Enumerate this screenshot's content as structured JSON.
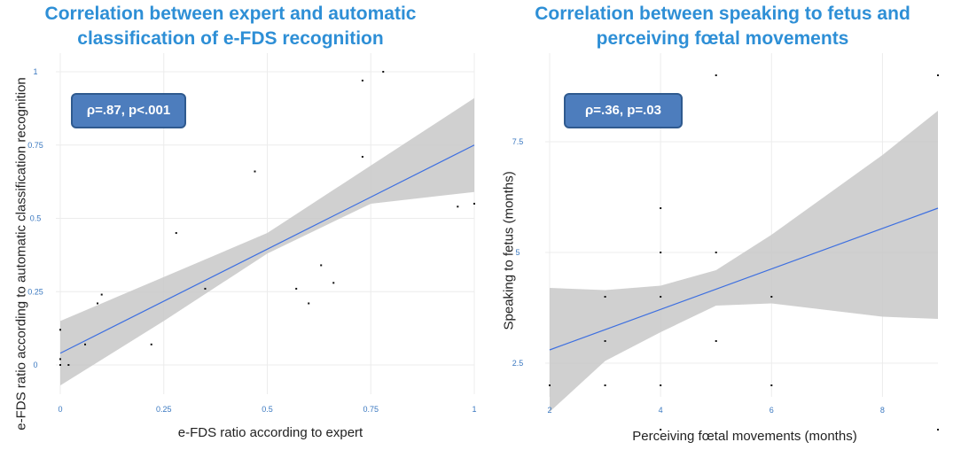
{
  "chart_data": [
    {
      "type": "scatter",
      "title": [
        "Correlation between expert and automatic",
        "classification of e-FDS recognition"
      ],
      "xlabel": "e-FDS ratio according to expert",
      "ylabel": "e-FDS ratio according to automatic classification recognition",
      "annotation": "ρ=.87, p<.001",
      "xlim": [
        0,
        1
      ],
      "ylim": [
        0,
        1
      ],
      "xticks": [
        0,
        0.25,
        0.5,
        0.75,
        1
      ],
      "xtick_labels": [
        "0",
        "0.25",
        "0.5",
        "0.75",
        "1"
      ],
      "yticks": [
        0,
        0.25,
        0.5,
        0.75,
        1
      ],
      "ytick_labels": [
        "0",
        "0.25",
        "0.5",
        "0.75",
        "1"
      ],
      "points": [
        [
          0,
          0.12
        ],
        [
          0,
          0.02
        ],
        [
          0,
          0
        ],
        [
          0.02,
          0
        ],
        [
          0.06,
          0.07
        ],
        [
          0.09,
          0.21
        ],
        [
          0.1,
          0.24
        ],
        [
          0.22,
          0.07
        ],
        [
          0.28,
          0.45
        ],
        [
          0.35,
          0.26
        ],
        [
          0.47,
          0.66
        ],
        [
          0.57,
          0.26
        ],
        [
          0.6,
          0.21
        ],
        [
          0.63,
          0.34
        ],
        [
          0.66,
          0.28
        ],
        [
          0.73,
          0.71
        ],
        [
          0.73,
          0.97
        ],
        [
          0.78,
          1.0
        ],
        [
          0.96,
          0.54
        ],
        [
          1.0,
          0.55
        ]
      ],
      "fit_line": {
        "x": [
          0,
          1
        ],
        "y": [
          0.04,
          0.75
        ]
      },
      "confidence_band": {
        "x": [
          0,
          0.25,
          0.5,
          0.75,
          1
        ],
        "lower": [
          -0.07,
          0.15,
          0.38,
          0.55,
          0.59
        ],
        "upper": [
          0.15,
          0.3,
          0.45,
          0.68,
          0.91
        ]
      }
    },
    {
      "type": "scatter",
      "title": [
        "Correlation between speaking to fetus and",
        "perceiving fœtal movements"
      ],
      "xlabel": "Perceiving fœtal movements (months)",
      "ylabel": "Speaking to fetus (months)",
      "annotation": "ρ=.36, p=.03",
      "xlim": [
        2,
        9
      ],
      "ylim": [
        1.2,
        9
      ],
      "xticks": [
        2,
        4,
        6,
        8
      ],
      "xtick_labels": [
        "2",
        "4",
        "6",
        "8"
      ],
      "yticks": [
        2.5,
        5,
        7.5
      ],
      "ytick_labels": [
        "2.5",
        "5",
        "7.5"
      ],
      "points": [
        [
          2,
          2
        ],
        [
          3,
          2
        ],
        [
          3,
          3
        ],
        [
          3,
          4
        ],
        [
          4,
          1
        ],
        [
          4,
          2
        ],
        [
          4,
          4
        ],
        [
          4,
          5
        ],
        [
          4,
          6
        ],
        [
          5,
          3
        ],
        [
          5,
          5
        ],
        [
          5,
          9
        ],
        [
          6,
          2
        ],
        [
          6,
          4
        ],
        [
          9,
          1
        ],
        [
          9,
          9
        ]
      ],
      "fit_line": {
        "x": [
          2,
          9
        ],
        "y": [
          2.8,
          6
        ]
      },
      "confidence_band": {
        "x": [
          2,
          3,
          4,
          5,
          6,
          7,
          8,
          9
        ],
        "lower": [
          1.4,
          2.55,
          3.2,
          3.8,
          3.85,
          3.7,
          3.55,
          3.5
        ],
        "upper": [
          4.2,
          4.15,
          4.25,
          4.6,
          5.4,
          6.3,
          7.2,
          8.2
        ]
      }
    }
  ]
}
